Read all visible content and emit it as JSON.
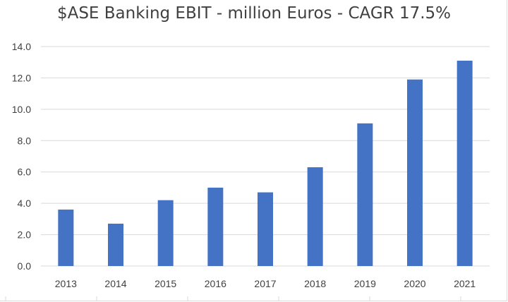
{
  "chart_data": {
    "type": "bar",
    "title": "$ASE Banking EBIT - million Euros - CAGR 17.5%",
    "categories": [
      "2013",
      "2014",
      "2015",
      "2016",
      "2017",
      "2018",
      "2019",
      "2020",
      "2021"
    ],
    "values": [
      3.6,
      2.7,
      4.2,
      5.0,
      4.7,
      6.3,
      9.1,
      11.9,
      13.1
    ],
    "xlabel": "",
    "ylabel": "",
    "ylim": [
      0,
      14
    ],
    "yticks": [
      "0.0",
      "2.0",
      "4.0",
      "6.0",
      "8.0",
      "10.0",
      "12.0",
      "14.0"
    ],
    "grid": true,
    "legend": "none",
    "bar_color": "#4472C4",
    "grid_color": "#d9d9d9"
  }
}
